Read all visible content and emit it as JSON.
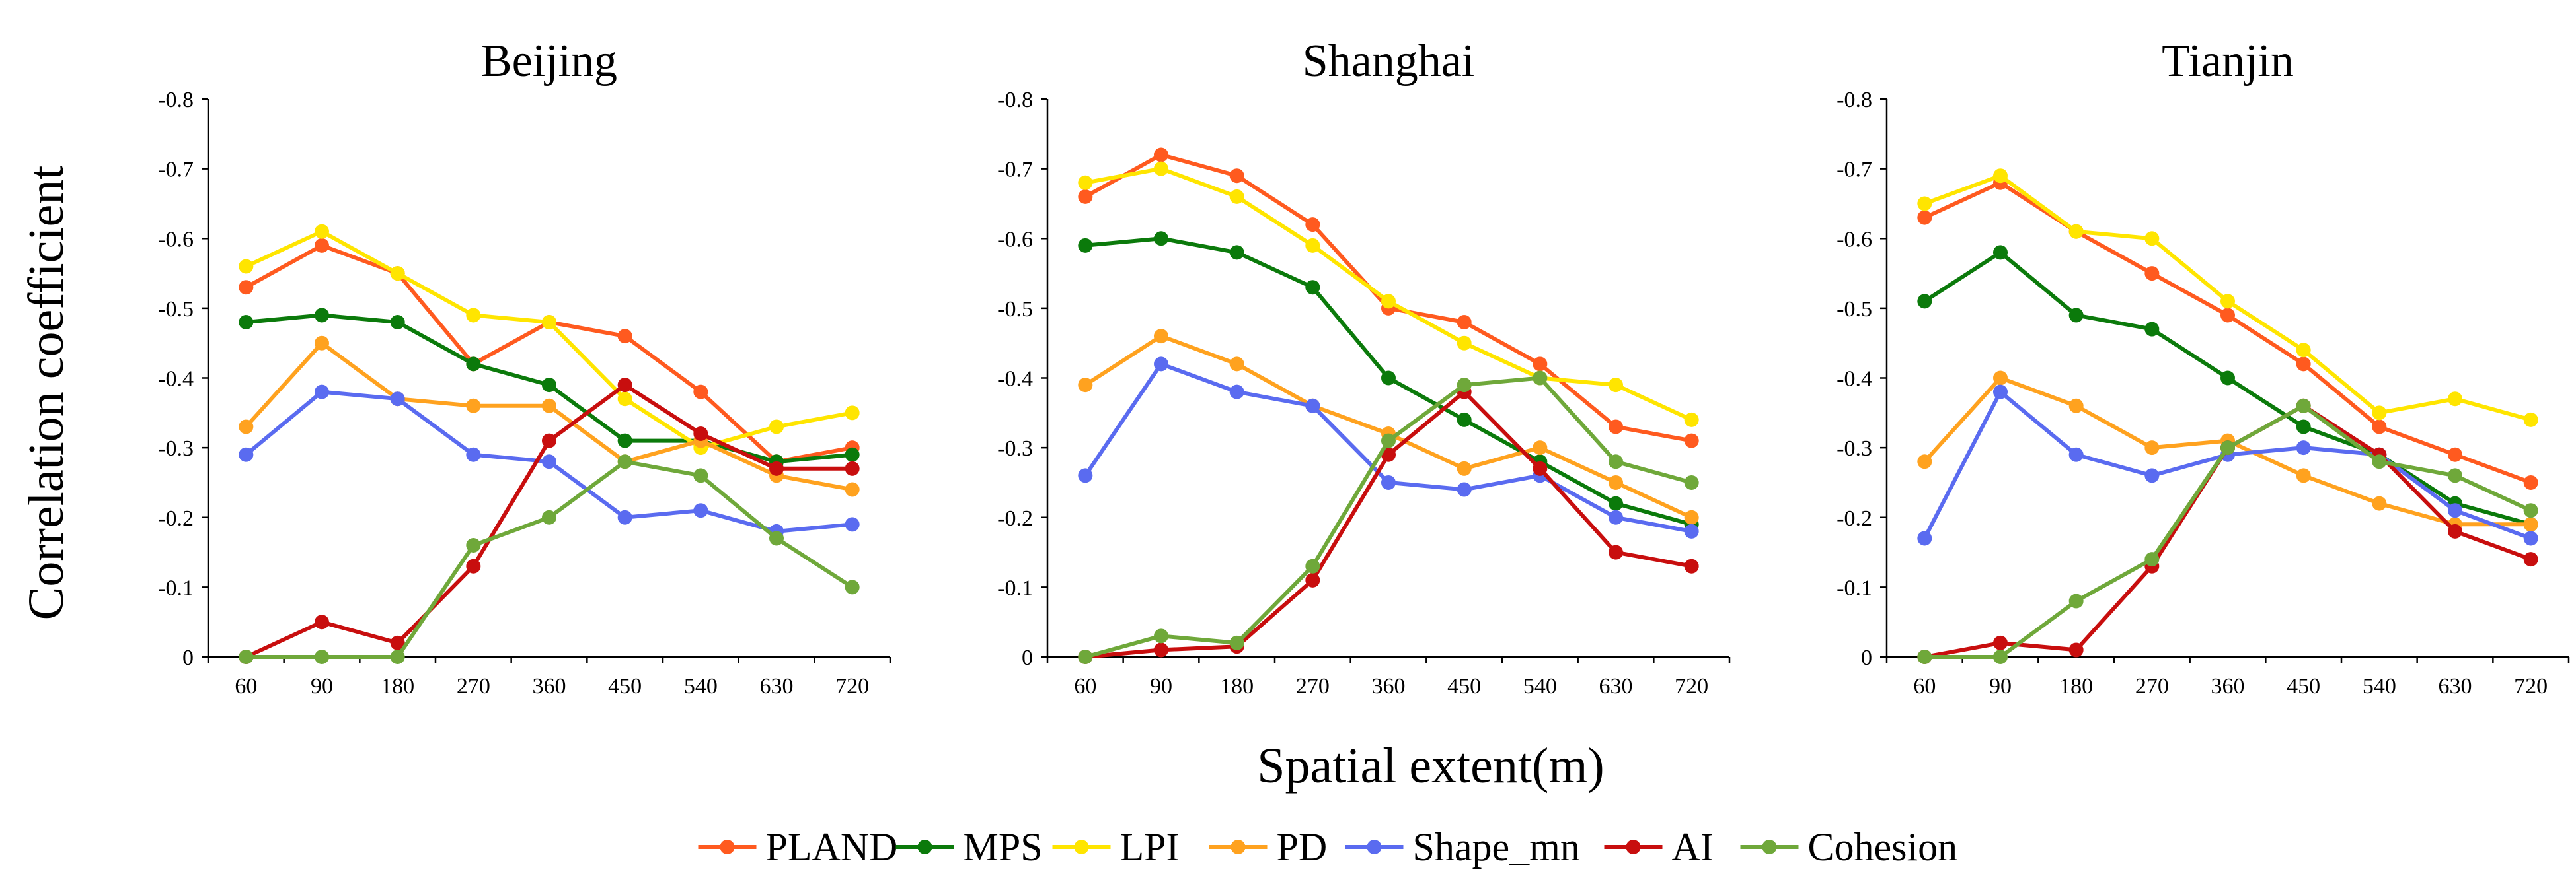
{
  "chart_data": [
    {
      "type": "line",
      "title": "Beijing",
      "xlabel": "Spatial extent(m)",
      "ylabel": "Correlation coefficient",
      "categories": [
        "60",
        "90",
        "180",
        "270",
        "360",
        "450",
        "540",
        "630",
        "720"
      ],
      "y_tick_labels": [
        "0",
        "-0.1",
        "-0.2",
        "-0.3",
        "-0.4",
        "-0.5",
        "-0.6",
        "-0.7",
        "-0.8"
      ],
      "ylim": [
        0,
        -0.8
      ],
      "y_direction": "values shown as negative, increasing in magnitude upward",
      "series": [
        {
          "name": "PLAND",
          "values": [
            -0.53,
            -0.59,
            -0.55,
            -0.42,
            -0.48,
            -0.46,
            -0.38,
            -0.28,
            -0.3
          ]
        },
        {
          "name": "MPS",
          "values": [
            -0.48,
            -0.49,
            -0.48,
            -0.42,
            -0.39,
            -0.31,
            -0.31,
            -0.28,
            -0.29
          ]
        },
        {
          "name": "LPI",
          "values": [
            -0.56,
            -0.61,
            -0.55,
            -0.49,
            -0.48,
            -0.37,
            -0.3,
            -0.33,
            -0.35
          ]
        },
        {
          "name": "PD",
          "values": [
            -0.33,
            -0.45,
            -0.37,
            -0.36,
            -0.36,
            -0.28,
            -0.31,
            -0.26,
            -0.24
          ]
        },
        {
          "name": "Shape_mn",
          "values": [
            -0.29,
            -0.38,
            -0.37,
            -0.29,
            -0.28,
            -0.2,
            -0.21,
            -0.18,
            -0.19
          ]
        },
        {
          "name": "AI",
          "values": [
            0.0,
            -0.05,
            -0.02,
            -0.13,
            -0.31,
            -0.39,
            -0.32,
            -0.27,
            -0.27
          ]
        },
        {
          "name": "Cohesion",
          "values": [
            0.0,
            0.0,
            0.0,
            -0.16,
            -0.2,
            -0.28,
            -0.26,
            -0.17,
            -0.1
          ]
        }
      ]
    },
    {
      "type": "line",
      "title": "Shanghai",
      "xlabel": "Spatial extent(m)",
      "ylabel": "Correlation coefficient",
      "categories": [
        "60",
        "90",
        "180",
        "270",
        "360",
        "450",
        "540",
        "630",
        "720"
      ],
      "y_tick_labels": [
        "0",
        "-0.1",
        "-0.2",
        "-0.3",
        "-0.4",
        "-0.5",
        "-0.6",
        "-0.7",
        "-0.8"
      ],
      "ylim": [
        0,
        -0.8
      ],
      "series": [
        {
          "name": "PLAND",
          "values": [
            -0.66,
            -0.72,
            -0.69,
            -0.62,
            -0.5,
            -0.48,
            -0.42,
            -0.33,
            -0.31
          ]
        },
        {
          "name": "MPS",
          "values": [
            -0.59,
            -0.6,
            -0.58,
            -0.53,
            -0.4,
            -0.34,
            -0.28,
            -0.22,
            -0.19
          ]
        },
        {
          "name": "LPI",
          "values": [
            -0.68,
            -0.7,
            -0.66,
            -0.59,
            -0.51,
            -0.45,
            -0.4,
            -0.39,
            -0.34
          ]
        },
        {
          "name": "PD",
          "values": [
            -0.39,
            -0.46,
            -0.42,
            -0.36,
            -0.32,
            -0.27,
            -0.3,
            -0.25,
            -0.2
          ]
        },
        {
          "name": "Shape_mn",
          "values": [
            -0.26,
            -0.42,
            -0.38,
            -0.36,
            -0.25,
            -0.24,
            -0.26,
            -0.2,
            -0.18
          ]
        },
        {
          "name": "AI",
          "values": [
            0.0,
            -0.01,
            -0.015,
            -0.11,
            -0.29,
            -0.38,
            -0.27,
            -0.15,
            -0.13
          ]
        },
        {
          "name": "Cohesion",
          "values": [
            0.0,
            -0.03,
            -0.02,
            -0.13,
            -0.31,
            -0.39,
            -0.4,
            -0.28,
            -0.25
          ]
        }
      ]
    },
    {
      "type": "line",
      "title": "Tianjin",
      "xlabel": "Spatial extent(m)",
      "ylabel": "Correlation coefficient",
      "categories": [
        "60",
        "90",
        "180",
        "270",
        "360",
        "450",
        "540",
        "630",
        "720"
      ],
      "y_tick_labels": [
        "0",
        "-0.1",
        "-0.2",
        "-0.3",
        "-0.4",
        "-0.5",
        "-0.6",
        "-0.7",
        "-0.8"
      ],
      "ylim": [
        0,
        -0.8
      ],
      "series": [
        {
          "name": "PLAND",
          "values": [
            -0.63,
            -0.68,
            -0.61,
            -0.55,
            -0.49,
            -0.42,
            -0.33,
            -0.29,
            -0.25
          ]
        },
        {
          "name": "MPS",
          "values": [
            -0.51,
            -0.58,
            -0.49,
            -0.47,
            -0.4,
            -0.33,
            -0.29,
            -0.22,
            -0.19
          ]
        },
        {
          "name": "LPI",
          "values": [
            -0.65,
            -0.69,
            -0.61,
            -0.6,
            -0.51,
            -0.44,
            -0.35,
            -0.37,
            -0.34
          ]
        },
        {
          "name": "PD",
          "values": [
            -0.28,
            -0.4,
            -0.36,
            -0.3,
            -0.31,
            -0.26,
            -0.22,
            -0.19,
            -0.19
          ]
        },
        {
          "name": "Shape_mn",
          "values": [
            -0.17,
            -0.38,
            -0.29,
            -0.26,
            -0.29,
            -0.3,
            -0.29,
            -0.21,
            -0.17
          ]
        },
        {
          "name": "AI",
          "values": [
            0.0,
            -0.02,
            -0.01,
            -0.13,
            -0.3,
            -0.36,
            -0.29,
            -0.18,
            -0.14
          ]
        },
        {
          "name": "Cohesion",
          "values": [
            0.0,
            0.0,
            -0.08,
            -0.14,
            -0.3,
            -0.36,
            -0.28,
            -0.26,
            -0.21
          ]
        }
      ]
    }
  ],
  "shared_xlabel": "Spatial extent(m)",
  "shared_ylabel": "Correlation coefficient",
  "legend": {
    "placement": "bottom-center",
    "items": [
      {
        "name": "PLAND",
        "color": "#FF5A1F"
      },
      {
        "name": "MPS",
        "color": "#0B7A0B"
      },
      {
        "name": "LPI",
        "color": "#FFE500"
      },
      {
        "name": "PD",
        "color": "#FFA21F"
      },
      {
        "name": "Shape_mn",
        "color": "#5A6BF0"
      },
      {
        "name": "AI",
        "color": "#C80E0E"
      },
      {
        "name": "Cohesion",
        "color": "#6FA83A"
      }
    ]
  }
}
